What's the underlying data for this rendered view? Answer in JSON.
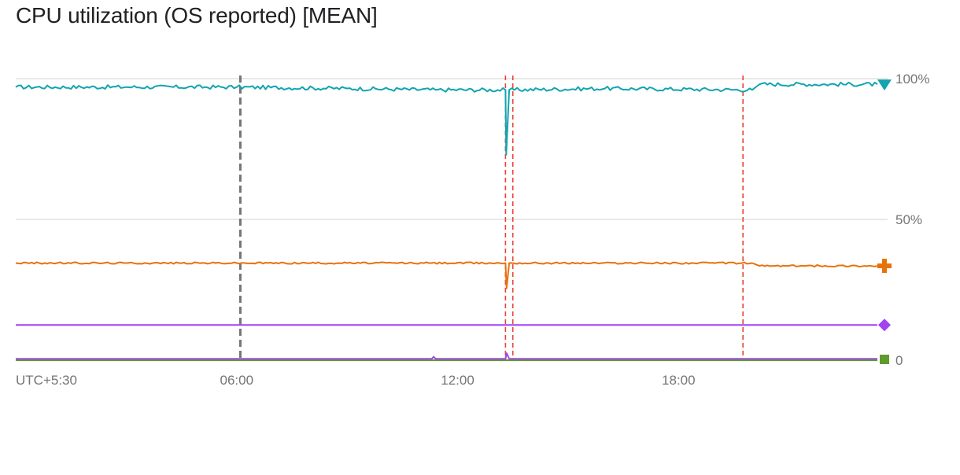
{
  "chart_data": {
    "type": "line",
    "title": "CPU utilization (OS reported) [MEAN]",
    "y_ticks": [
      {
        "value": 100,
        "label": "100%"
      },
      {
        "value": 50,
        "label": "50%"
      },
      {
        "value": 0,
        "label": "0"
      }
    ],
    "ylim": [
      0,
      100
    ],
    "x_hours_range": [
      0,
      23.4
    ],
    "x_ticks": [
      {
        "hour": 0,
        "label": "UTC+5:30"
      },
      {
        "hour": 6,
        "label": "06:00"
      },
      {
        "hour": 12,
        "label": "12:00"
      },
      {
        "hour": 18,
        "label": "18:00"
      }
    ],
    "grid": "horizontal",
    "event_markers": [
      {
        "hour": 6.1,
        "style": "gray-dashed",
        "color": "#757575"
      },
      {
        "hour": 13.3,
        "style": "red-dashed",
        "color": "#ea4335"
      },
      {
        "hour": 13.5,
        "style": "red-dashed",
        "color": "#ea4335"
      },
      {
        "hour": 19.75,
        "style": "red-dashed",
        "color": "#ea4335"
      }
    ],
    "series": [
      {
        "color": "#12a4af",
        "marker": "triangle-down-icon",
        "points": [
          [
            0,
            97
          ],
          [
            3,
            97
          ],
          [
            6,
            97
          ],
          [
            9,
            96.5
          ],
          [
            11.4,
            96
          ],
          [
            13.3,
            96
          ],
          [
            13.32,
            73
          ],
          [
            13.4,
            96
          ],
          [
            16,
            96.5
          ],
          [
            20,
            96
          ],
          [
            20.2,
            98
          ],
          [
            23.4,
            98
          ]
        ]
      },
      {
        "color": "#e8710a",
        "marker": "cross-icon",
        "points": [
          [
            0,
            34.5
          ],
          [
            3,
            34.5
          ],
          [
            6,
            34.5
          ],
          [
            9,
            34.5
          ],
          [
            13.3,
            34.5
          ],
          [
            13.33,
            25.5
          ],
          [
            13.4,
            34.5
          ],
          [
            20,
            34.5
          ],
          [
            20.2,
            33.5
          ],
          [
            23.4,
            33.5
          ]
        ]
      },
      {
        "color": "#a142f4",
        "marker": "diamond-icon",
        "points": [
          [
            0,
            12.5
          ],
          [
            23.4,
            12.5
          ]
        ]
      },
      {
        "color": "#a142f4",
        "marker": "none",
        "points": [
          [
            0,
            0.5
          ],
          [
            11.3,
            0.5
          ],
          [
            11.35,
            1.2
          ],
          [
            11.4,
            0.5
          ],
          [
            13.3,
            0.5
          ],
          [
            13.33,
            2.5
          ],
          [
            13.4,
            0.5
          ],
          [
            23.4,
            0.5
          ]
        ]
      },
      {
        "color": "#5f9b2f",
        "marker": "square-icon",
        "points": [
          [
            0,
            0
          ],
          [
            23.4,
            0
          ]
        ]
      }
    ]
  }
}
